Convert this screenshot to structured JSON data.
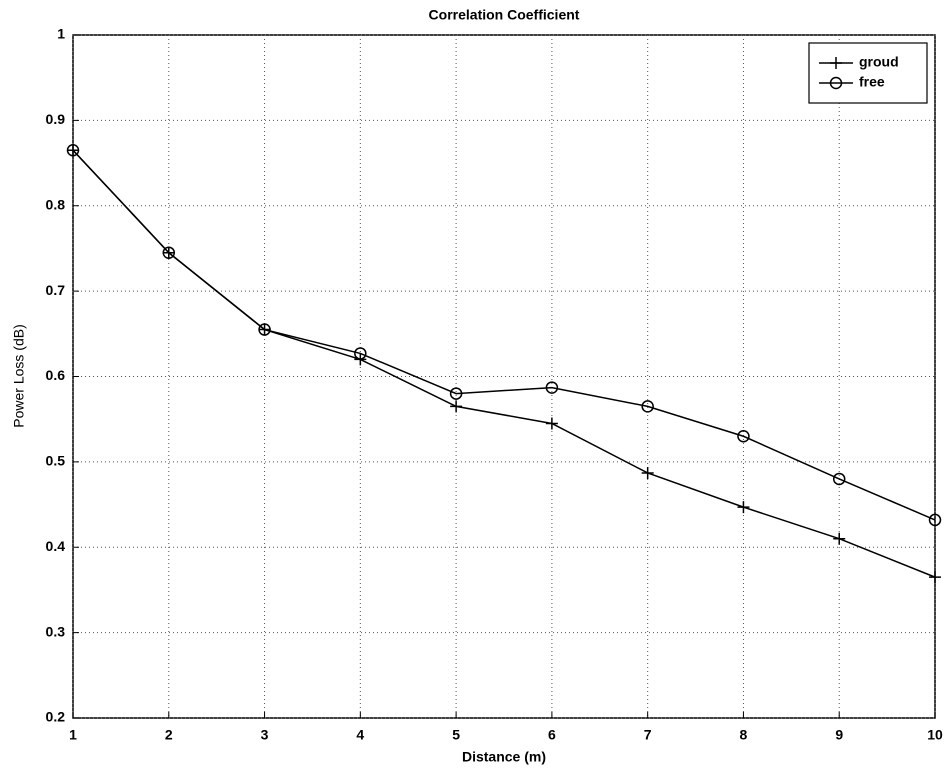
{
  "chart_data": {
    "type": "line",
    "title": "Correlation Coefficient",
    "x_label": "Distance (m)",
    "y_label": "Power Loss (dB)",
    "x": [
      1,
      2,
      3,
      4,
      5,
      6,
      7,
      8,
      9,
      10
    ],
    "series": [
      {
        "name": "groud",
        "color": "#000000",
        "marker": "plus",
        "values": [
          0.865,
          0.745,
          0.655,
          0.62,
          0.565,
          0.545,
          0.487,
          0.447,
          0.41,
          0.365
        ]
      },
      {
        "name": "free",
        "color": "#000000",
        "marker": "circle",
        "values": [
          0.865,
          0.745,
          0.655,
          0.627,
          0.58,
          0.587,
          0.565,
          0.53,
          0.48,
          0.432
        ]
      }
    ],
    "xlim": [
      1,
      10
    ],
    "xticks": [
      1,
      2,
      3,
      4,
      5,
      6,
      7,
      8,
      9,
      10
    ],
    "ylim": [
      0.2,
      1
    ],
    "yticks": [
      0.2,
      0.3,
      0.4,
      0.5,
      0.6,
      0.7,
      0.8,
      0.9,
      1
    ],
    "grid": true,
    "legend": "upper right"
  }
}
